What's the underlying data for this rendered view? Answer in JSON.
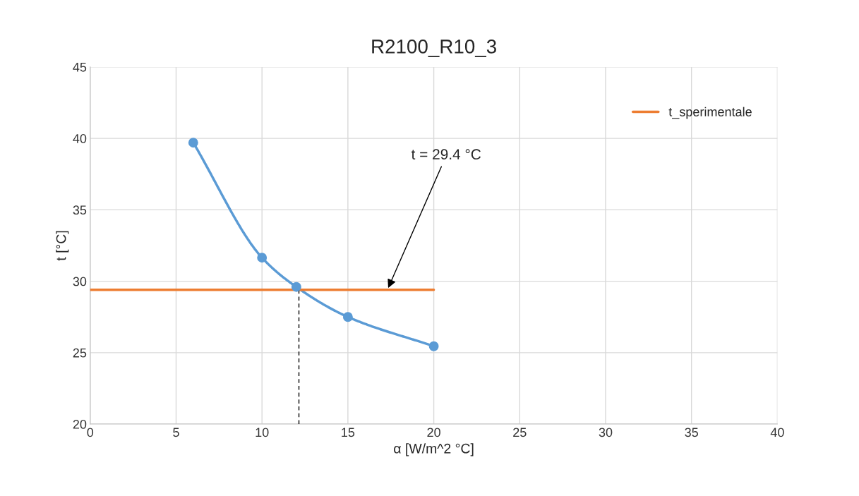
{
  "chart_data": {
    "type": "line",
    "title": "R2100_R10_3",
    "xlabel": "α [W/m^2 °C]",
    "ylabel": "t [°C]",
    "series": [
      {
        "color": "#5b9bd5",
        "x": [
          6,
          10,
          12,
          15,
          20
        ],
        "values": [
          39.7,
          31.65,
          29.6,
          27.5,
          25.45
        ],
        "marker": "circle"
      },
      {
        "name": "t_sperimentale",
        "color": "#ed7d31",
        "x": [
          0,
          20
        ],
        "values": [
          29.4,
          29.4
        ],
        "marker": "none"
      },
      {
        "color": "#000000",
        "x": [
          12.15,
          12.15
        ],
        "values": [
          20,
          29.4
        ],
        "marker": "none",
        "line_style": "dashed"
      }
    ],
    "annotations": [
      {
        "text": "t = 29.4 °C",
        "x": 17.3,
        "y": 29.4
      }
    ],
    "xlim": [
      0,
      40
    ],
    "xticks": [
      0,
      5,
      10,
      15,
      20,
      25,
      30,
      35,
      40
    ],
    "ylim": [
      20,
      45
    ],
    "yticks": [
      20,
      25,
      30,
      35,
      40,
      45
    ],
    "grid": true,
    "legend": "top right"
  }
}
